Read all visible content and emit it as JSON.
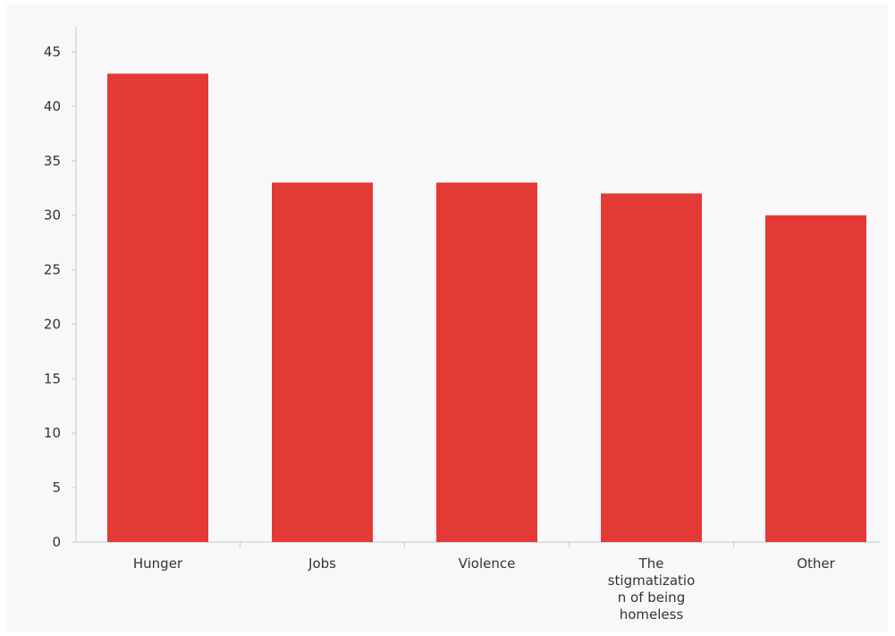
{
  "chart_data": {
    "type": "bar",
    "categories": [
      "Hunger",
      "Jobs",
      "Violence",
      "The stigmatization of being homeless",
      "Other"
    ],
    "category_label_lines": [
      [
        "Hunger"
      ],
      [
        "Jobs"
      ],
      [
        "Violence"
      ],
      [
        "The",
        "stigmatizatio",
        "n of being",
        "homeless"
      ],
      [
        "Other"
      ]
    ],
    "values": [
      43,
      33,
      33,
      32,
      30
    ],
    "ylim": [
      0,
      45
    ],
    "yticks": [
      0,
      5,
      10,
      15,
      20,
      25,
      30,
      35,
      40,
      45
    ],
    "title": "",
    "xlabel": "",
    "ylabel": "",
    "grid": false,
    "bar_color": "#e43a36",
    "background_color": "#f8f8fa",
    "axis_color": "#c8c8cc"
  }
}
